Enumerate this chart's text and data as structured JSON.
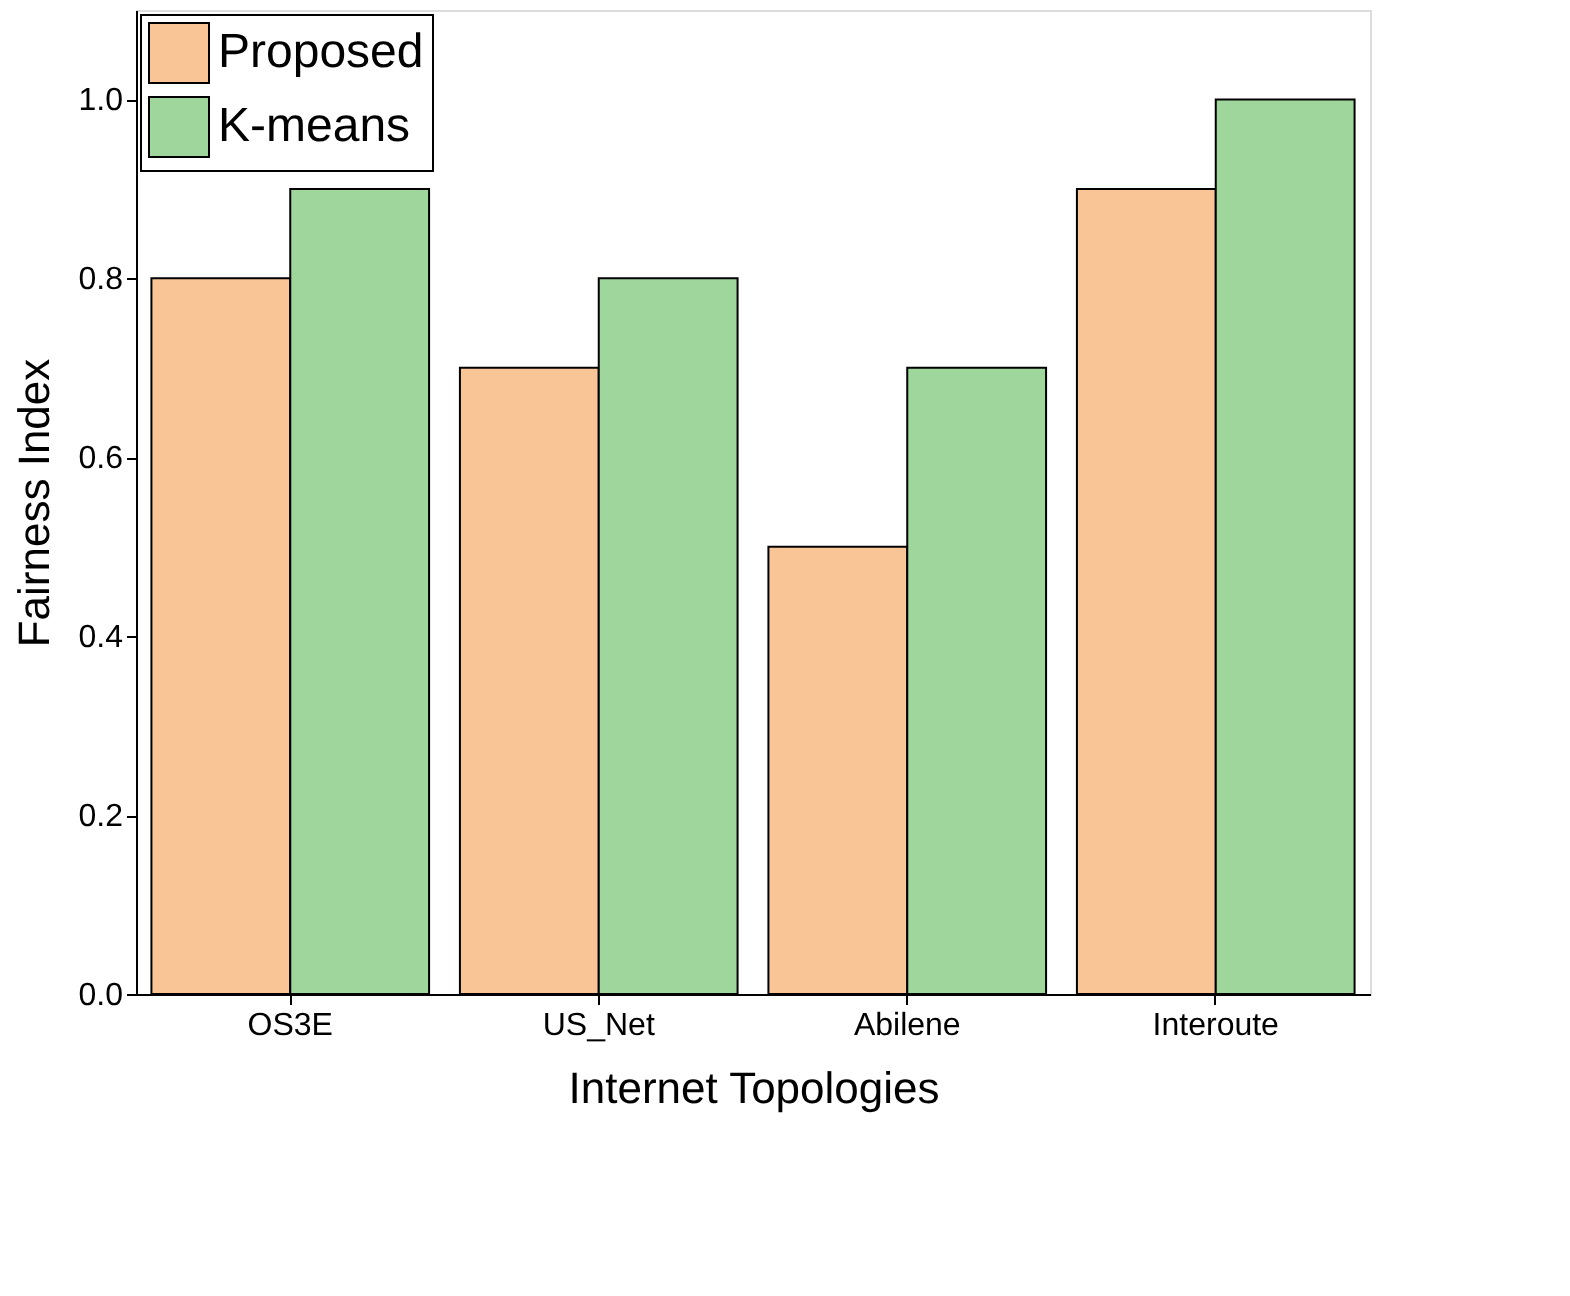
{
  "chart_data": {
    "type": "bar",
    "xlabel": "Internet Topologies",
    "ylabel": "Fairness Index",
    "categories": [
      "OS3E",
      "US_Net",
      "Abilene",
      "Interoute"
    ],
    "series": [
      {
        "name": "Proposed",
        "color": "#f9c597",
        "values": [
          0.8,
          0.7,
          0.5,
          0.9
        ]
      },
      {
        "name": "K-means",
        "color": "#9fd69b",
        "values": [
          0.9,
          0.8,
          0.7,
          1.0
        ]
      }
    ],
    "ylim": [
      0,
      1.1
    ],
    "yticks": [
      {
        "value": 0,
        "label": "0.0"
      },
      {
        "value": 0.2,
        "label": "0.2"
      },
      {
        "value": 0.4,
        "label": "0.4"
      },
      {
        "value": 0.6,
        "label": "0.6"
      },
      {
        "value": 0.8,
        "label": "0.8"
      },
      {
        "value": 1.0,
        "label": "1.0"
      }
    ],
    "grid": false,
    "legend": "top left"
  }
}
